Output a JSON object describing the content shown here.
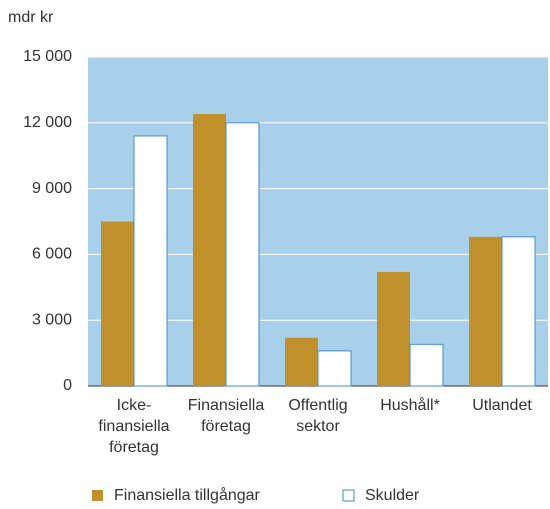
{
  "chart_data": {
    "type": "bar",
    "y_label": "mdr kr",
    "categories": [
      "Icke-\nfinansiella\nföretag",
      "Finansiella\nföretag",
      "Offentlig\nsektor",
      "Hushåll*",
      "Utlandet"
    ],
    "series": [
      {
        "name": "Finansiella tillgångar",
        "color": "#c0902c",
        "values": [
          7500,
          12400,
          2200,
          5200,
          6800
        ]
      },
      {
        "name": "Skulder",
        "color": "#ffffff",
        "values": [
          11400,
          12000,
          1600,
          1900,
          6800
        ]
      }
    ],
    "ylim": [
      0,
      15000
    ],
    "yticks": [
      0,
      {
        "value": 3000,
        "label": "3 000"
      },
      {
        "value": 6000,
        "label": "6 000"
      },
      {
        "value": 9000,
        "label": "9 000"
      },
      {
        "value": 12000,
        "label": "12 000"
      },
      {
        "value": 15000,
        "label": "15 000"
      }
    ],
    "grid": true,
    "plot_background": "#a8d0ea",
    "outline_color": "#3d8cc6"
  }
}
